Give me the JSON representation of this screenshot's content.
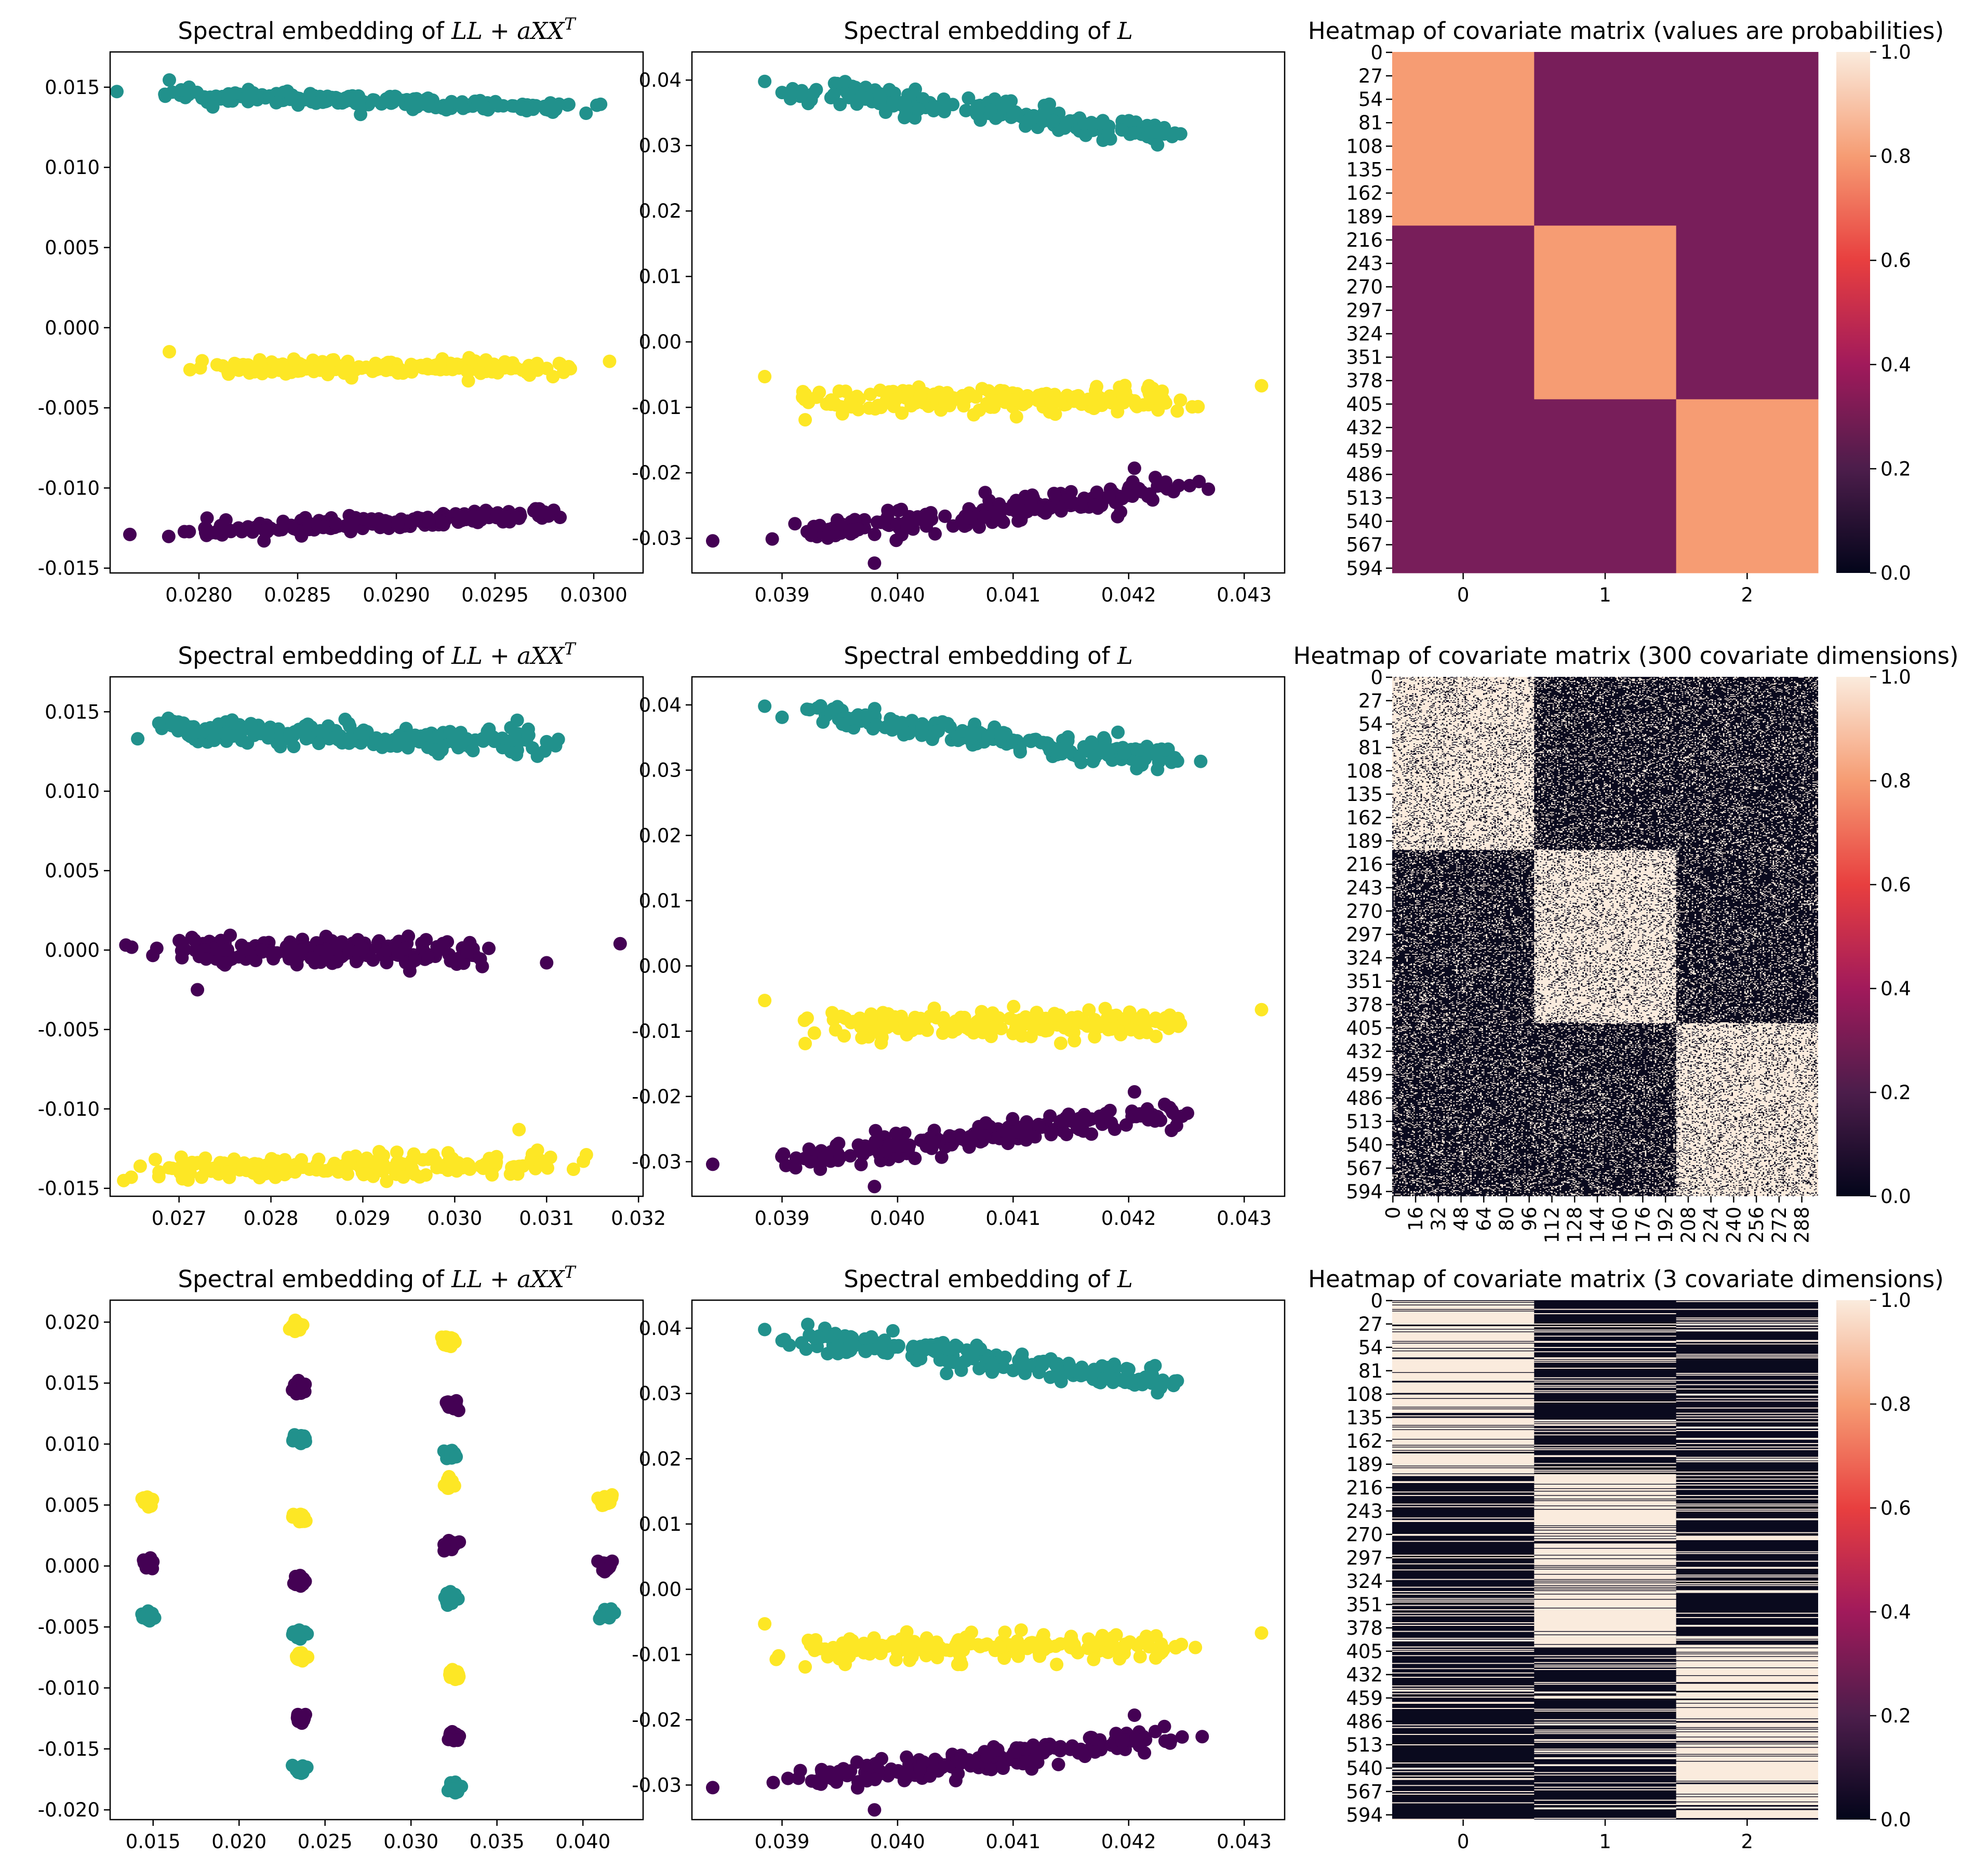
{
  "colors": {
    "teal": "#21918c",
    "yellow": "#fde725",
    "purple": "#440154",
    "rocket_stops": [
      "#03051a",
      "#4c1d4b",
      "#a11a5b",
      "#e83f3f",
      "#f69c73",
      "#faebdd"
    ]
  },
  "chart_data": [
    {
      "type": "scatter",
      "title": "Spectral embedding of LL + aXX^T",
      "xlim": [
        0.02755,
        0.03025
      ],
      "ylim": [
        -0.0153,
        0.0172
      ],
      "xticks": [
        "0.0280",
        "0.0285",
        "0.0290",
        "0.0295",
        "0.0300"
      ],
      "yticks": [
        "0.015",
        "0.010",
        "0.005",
        "0.000",
        "-0.005",
        "-0.010",
        "-0.015"
      ],
      "series": [
        {
          "name": "teal",
          "color": "#21918c",
          "cx": [
            0.0279,
            0.0298
          ],
          "cy": [
            0.0146,
            0.0137
          ],
          "sx": 0.00042,
          "sy": 0.0004,
          "n": 190,
          "outliers": [
            [
              0.02785,
              0.01545
            ],
            [
              0.02795,
              0.015
            ],
            [
              0.02965,
              0.0137
            ],
            [
              0.02975,
              0.0138
            ]
          ]
        },
        {
          "name": "yellow",
          "color": "#fde725",
          "cx": [
            0.0281,
            0.0297
          ],
          "cy": [
            -0.0025,
            -0.0025
          ],
          "sx": 0.00045,
          "sy": 0.0005,
          "n": 190,
          "outliers": [
            [
              0.02785,
              -0.0015
            ],
            [
              0.03008,
              -0.0021
            ],
            [
              0.02815,
              -0.0029
            ]
          ]
        },
        {
          "name": "purple",
          "color": "#440154",
          "cx": [
            0.0281,
            0.0297
          ],
          "cy": [
            -0.0127,
            -0.0116
          ],
          "sx": 0.00045,
          "sy": 0.00045,
          "n": 190,
          "outliers": [
            [
              0.02765,
              -0.0129
            ],
            [
              0.02975,
              -0.0115
            ]
          ]
        }
      ]
    },
    {
      "type": "scatter",
      "title": "Spectral embedding of L",
      "xlim": [
        0.03822,
        0.04335
      ],
      "ylim": [
        -0.0353,
        0.0443
      ],
      "xticks": [
        "0.039",
        "0.040",
        "0.041",
        "0.042",
        "0.043"
      ],
      "yticks": [
        "0.04",
        "0.03",
        "0.02",
        "0.01",
        "0.00",
        "-0.01",
        "-0.02",
        "-0.03"
      ],
      "series": [
        {
          "name": "teal",
          "color": "#21918c",
          "cx": [
            0.0393,
            0.0424
          ],
          "cy": [
            0.0385,
            0.0315
          ],
          "sx": 0.0005,
          "sy": 0.0018,
          "n": 190,
          "outliers": [
            [
              0.03885,
              0.0398
            ],
            [
              0.039,
              0.0381
            ],
            [
              0.04225,
              0.0301
            ],
            [
              0.0424,
              0.0319
            ]
          ]
        },
        {
          "name": "yellow",
          "color": "#fde725",
          "cx": [
            0.0392,
            0.0424
          ],
          "cy": [
            -0.0088,
            -0.0088
          ],
          "sx": 0.0005,
          "sy": 0.0022,
          "n": 190,
          "outliers": [
            [
              0.03885,
              -0.0053
            ],
            [
              0.04315,
              -0.0067
            ],
            [
              0.0392,
              -0.0119
            ]
          ]
        },
        {
          "name": "purple",
          "color": "#440154",
          "cx": [
            0.0392,
            0.0424
          ],
          "cy": [
            -0.0295,
            -0.0225
          ],
          "sx": 0.0005,
          "sy": 0.002,
          "n": 190,
          "outliers": [
            [
              0.0384,
              -0.0304
            ],
            [
              0.04205,
              -0.0193
            ],
            [
              0.0398,
              -0.0338
            ]
          ]
        }
      ]
    },
    {
      "type": "heatmap",
      "variant": "block",
      "title": "Heatmap of covariate matrix (values are probabilities)",
      "columns": [
        "0",
        "1",
        "2"
      ],
      "yticks": [
        "0",
        "27",
        "54",
        "81",
        "108",
        "135",
        "162",
        "189",
        "216",
        "243",
        "270",
        "297",
        "324",
        "351",
        "378",
        "405",
        "432",
        "459",
        "486",
        "513",
        "540",
        "567",
        "594"
      ],
      "n_rows": 600,
      "matrix_blocks": [
        [
          0.8,
          0.3,
          0.3
        ],
        [
          0.3,
          0.8,
          0.3
        ],
        [
          0.3,
          0.3,
          0.8
        ]
      ],
      "colorbar": {
        "min": 0.0,
        "max": 1.0,
        "ticks": [
          "0.0",
          "0.2",
          "0.4",
          "0.6",
          "0.8",
          "1.0"
        ]
      }
    },
    {
      "type": "scatter",
      "title": "Spectral embedding of LL + aXX^T",
      "xlim": [
        0.02625,
        0.03205
      ],
      "ylim": [
        -0.0155,
        0.0172
      ],
      "xticks": [
        "0.027",
        "0.028",
        "0.029",
        "0.030",
        "0.031",
        "0.032"
      ],
      "yticks": [
        "0.015",
        "0.010",
        "0.005",
        "0.000",
        "-0.005",
        "-0.010",
        "-0.015"
      ],
      "series": [
        {
          "name": "teal",
          "color": "#21918c",
          "cx": [
            0.0268,
            0.0309
          ],
          "cy": [
            0.014,
            0.013
          ],
          "sx": 0.0009,
          "sy": 0.0008,
          "n": 200,
          "outliers": [
            [
              0.02655,
              0.0133
            ],
            [
              0.0309,
              0.0122
            ],
            [
              0.0308,
              0.0139
            ]
          ]
        },
        {
          "name": "purple",
          "color": "#440154",
          "cx": [
            0.027,
            0.0302
          ],
          "cy": [
            -0.0001,
            -0.0001
          ],
          "sx": 0.0008,
          "sy": 0.0009,
          "n": 200,
          "outliers": [
            [
              0.0318,
              0.0004
            ],
            [
              0.031,
              -0.0008
            ],
            [
              0.0272,
              -0.0025
            ]
          ]
        },
        {
          "name": "yellow",
          "color": "#fde725",
          "cx": [
            0.0268,
            0.0309
          ],
          "cy": [
            -0.0138,
            -0.0134
          ],
          "sx": 0.0009,
          "sy": 0.0008,
          "n": 200,
          "outliers": [
            [
              0.02648,
              -0.0143
            ],
            [
              0.0307,
              -0.0113
            ],
            [
              0.0309,
              -0.0126
            ]
          ]
        }
      ]
    },
    {
      "type": "scatter",
      "title": "Spectral embedding of L",
      "xlim": [
        0.03822,
        0.04335
      ],
      "ylim": [
        -0.0353,
        0.0443
      ],
      "xticks": [
        "0.039",
        "0.040",
        "0.041",
        "0.042",
        "0.043"
      ],
      "yticks": [
        "0.04",
        "0.03",
        "0.02",
        "0.01",
        "0.00",
        "-0.01",
        "-0.02",
        "-0.03"
      ],
      "series": [
        {
          "name": "teal",
          "color": "#21918c",
          "cx": [
            0.0393,
            0.0424
          ],
          "cy": [
            0.0385,
            0.0315
          ],
          "sx": 0.0005,
          "sy": 0.0018,
          "n": 190,
          "outliers": [
            [
              0.03885,
              0.0398
            ],
            [
              0.039,
              0.0381
            ],
            [
              0.04225,
              0.0301
            ],
            [
              0.0424,
              0.0319
            ]
          ]
        },
        {
          "name": "yellow",
          "color": "#fde725",
          "cx": [
            0.0392,
            0.0424
          ],
          "cy": [
            -0.0088,
            -0.0088
          ],
          "sx": 0.0005,
          "sy": 0.0022,
          "n": 190,
          "outliers": [
            [
              0.03885,
              -0.0053
            ],
            [
              0.04315,
              -0.0067
            ],
            [
              0.0392,
              -0.0119
            ]
          ]
        },
        {
          "name": "purple",
          "color": "#440154",
          "cx": [
            0.0392,
            0.0424
          ],
          "cy": [
            -0.0295,
            -0.0225
          ],
          "sx": 0.0005,
          "sy": 0.002,
          "n": 190,
          "outliers": [
            [
              0.0384,
              -0.0304
            ],
            [
              0.04205,
              -0.0193
            ],
            [
              0.0398,
              -0.0338
            ]
          ]
        }
      ]
    },
    {
      "type": "heatmap",
      "variant": "noise",
      "title": "Heatmap of covariate matrix (300 covariate dimensions)",
      "columns": [
        "0",
        "16",
        "32",
        "48",
        "64",
        "80",
        "96",
        "112",
        "128",
        "144",
        "160",
        "176",
        "192",
        "208",
        "224",
        "240",
        "256",
        "272",
        "288"
      ],
      "n_cols": 300,
      "yticks": [
        "0",
        "27",
        "54",
        "81",
        "108",
        "135",
        "162",
        "189",
        "216",
        "243",
        "270",
        "297",
        "324",
        "351",
        "378",
        "405",
        "432",
        "459",
        "486",
        "513",
        "540",
        "567",
        "594"
      ],
      "n_rows": 600,
      "matrix_blocks": [
        [
          0.8,
          0.2,
          0.2
        ],
        [
          0.2,
          0.8,
          0.2
        ],
        [
          0.2,
          0.2,
          0.8
        ]
      ],
      "colorbar": {
        "min": 0.0,
        "max": 1.0,
        "ticks": [
          "0.0",
          "0.2",
          "0.4",
          "0.6",
          "0.8",
          "1.0"
        ]
      }
    },
    {
      "type": "scatter",
      "title": "Spectral embedding of LL + aXX^T",
      "xlim": [
        0.0125,
        0.0435
      ],
      "ylim": [
        -0.0208,
        0.0218
      ],
      "xticks": [
        "0.015",
        "0.020",
        "0.025",
        "0.030",
        "0.035",
        "0.040"
      ],
      "yticks": [
        "0.020",
        "0.015",
        "0.010",
        "0.005",
        "0.000",
        "-0.005",
        "-0.010",
        "-0.015",
        "-0.020"
      ],
      "clusters": [
        [
          0.0147,
          0.0053,
          "yellow"
        ],
        [
          0.0147,
          0.0002,
          "purple"
        ],
        [
          0.0147,
          -0.004,
          "teal"
        ],
        [
          0.0233,
          0.0197,
          "yellow"
        ],
        [
          0.0235,
          0.0145,
          "purple"
        ],
        [
          0.0235,
          0.0104,
          "teal"
        ],
        [
          0.0236,
          0.004,
          "yellow"
        ],
        [
          0.0235,
          -0.0012,
          "purple"
        ],
        [
          0.0235,
          -0.0055,
          "teal"
        ],
        [
          0.0236,
          -0.0075,
          "yellow"
        ],
        [
          0.0236,
          -0.0125,
          "purple"
        ],
        [
          0.0236,
          -0.0167,
          "teal"
        ],
        [
          0.0322,
          0.0185,
          "yellow"
        ],
        [
          0.0324,
          0.0132,
          "purple"
        ],
        [
          0.0323,
          0.0092,
          "teal"
        ],
        [
          0.0322,
          0.0068,
          "yellow"
        ],
        [
          0.0323,
          0.0017,
          "purple"
        ],
        [
          0.0323,
          -0.0025,
          "teal"
        ],
        [
          0.0325,
          -0.009,
          "yellow"
        ],
        [
          0.0325,
          -0.014,
          "purple"
        ],
        [
          0.0325,
          -0.0182,
          "teal"
        ],
        [
          0.0413,
          0.0053,
          "yellow"
        ],
        [
          0.0413,
          0.0,
          "purple"
        ],
        [
          0.0413,
          -0.004,
          "teal"
        ]
      ]
    },
    {
      "type": "scatter",
      "title": "Spectral embedding of L",
      "xlim": [
        0.03822,
        0.04335
      ],
      "ylim": [
        -0.0353,
        0.0443
      ],
      "xticks": [
        "0.039",
        "0.040",
        "0.041",
        "0.042",
        "0.043"
      ],
      "yticks": [
        "0.04",
        "0.03",
        "0.02",
        "0.01",
        "0.00",
        "-0.01",
        "-0.02",
        "-0.03"
      ],
      "series": [
        {
          "name": "teal",
          "color": "#21918c",
          "cx": [
            0.0393,
            0.0424
          ],
          "cy": [
            0.0385,
            0.0315
          ],
          "sx": 0.0005,
          "sy": 0.0018,
          "n": 190,
          "outliers": [
            [
              0.03885,
              0.0398
            ],
            [
              0.039,
              0.0381
            ],
            [
              0.04225,
              0.0301
            ],
            [
              0.0424,
              0.0319
            ]
          ]
        },
        {
          "name": "yellow",
          "color": "#fde725",
          "cx": [
            0.0392,
            0.0424
          ],
          "cy": [
            -0.0088,
            -0.0088
          ],
          "sx": 0.0005,
          "sy": 0.0022,
          "n": 190,
          "outliers": [
            [
              0.03885,
              -0.0053
            ],
            [
              0.04315,
              -0.0067
            ],
            [
              0.0392,
              -0.0119
            ]
          ]
        },
        {
          "name": "purple",
          "color": "#440154",
          "cx": [
            0.0392,
            0.0424
          ],
          "cy": [
            -0.0295,
            -0.0225
          ],
          "sx": 0.0005,
          "sy": 0.002,
          "n": 190,
          "outliers": [
            [
              0.0384,
              -0.0304
            ],
            [
              0.04205,
              -0.0193
            ],
            [
              0.0398,
              -0.0338
            ]
          ]
        }
      ]
    },
    {
      "type": "heatmap",
      "variant": "stripes",
      "title": "Heatmap of covariate matrix (3 covariate dimensions)",
      "columns": [
        "0",
        "1",
        "2"
      ],
      "yticks": [
        "0",
        "27",
        "54",
        "81",
        "108",
        "135",
        "162",
        "189",
        "216",
        "243",
        "270",
        "297",
        "324",
        "351",
        "378",
        "405",
        "432",
        "459",
        "486",
        "513",
        "540",
        "567",
        "594"
      ],
      "n_rows": 600,
      "matrix_blocks": [
        [
          0.8,
          0.2,
          0.2
        ],
        [
          0.2,
          0.8,
          0.2
        ],
        [
          0.2,
          0.2,
          0.8
        ]
      ],
      "colorbar": {
        "min": 0.0,
        "max": 1.0,
        "ticks": [
          "0.0",
          "0.2",
          "0.4",
          "0.6",
          "0.8",
          "1.0"
        ]
      }
    }
  ]
}
